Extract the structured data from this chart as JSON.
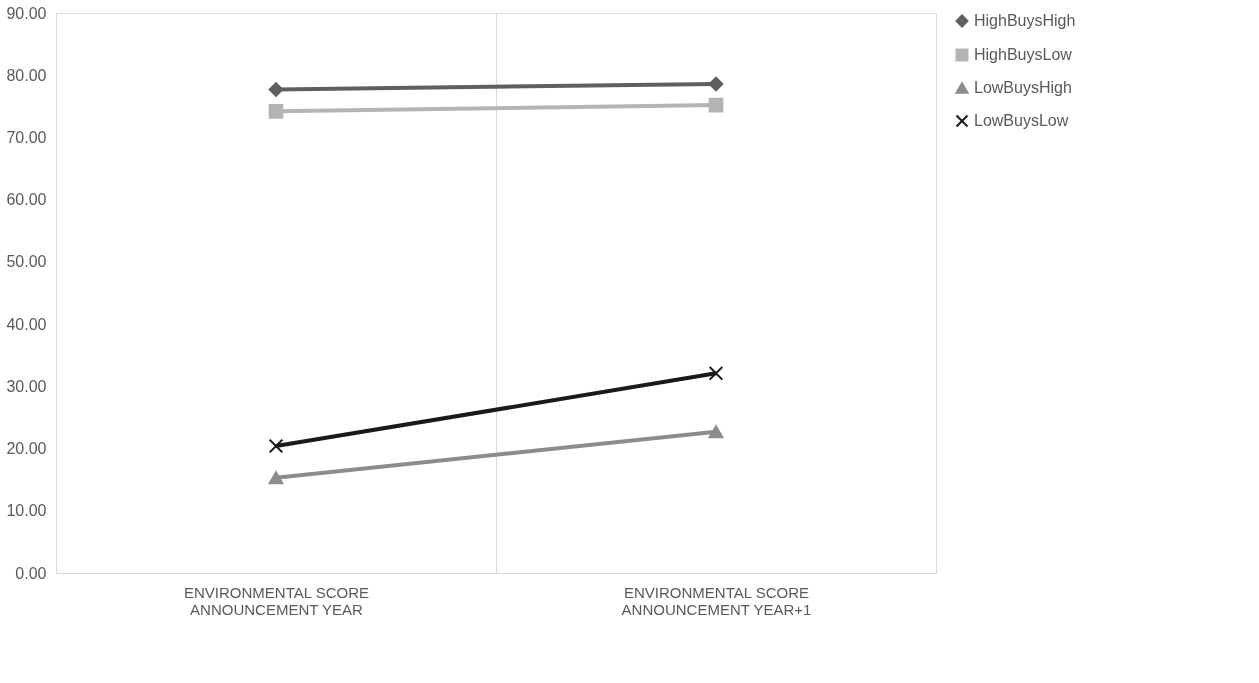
{
  "chart_data": {
    "type": "line",
    "categories": [
      "ENVIRONMENTAL SCORE ANNOUNCEMENT YEAR",
      "ENVIRONMENTAL SCORE ANNOUNCEMENT YEAR+1"
    ],
    "series": [
      {
        "name": "HighBuysHigh",
        "color": "#5f5f5f",
        "marker": "diamond",
        "values": [
          77.7,
          78.6
        ]
      },
      {
        "name": "HighBuysLow",
        "color": "#b4b4b4",
        "marker": "square",
        "values": [
          74.2,
          75.2
        ]
      },
      {
        "name": "LowBuysHigh",
        "color": "#8c8c8c",
        "marker": "triangle",
        "values": [
          15.3,
          22.7
        ]
      },
      {
        "name": "LowBuysLow",
        "color": "#1a1a1a",
        "marker": "cross",
        "values": [
          20.4,
          32.1
        ]
      }
    ],
    "ylim": [
      0,
      90
    ],
    "yticks": [
      {
        "value": 0,
        "label": "0.00"
      },
      {
        "value": 10,
        "label": "10.00"
      },
      {
        "value": 20,
        "label": "20.00"
      },
      {
        "value": 30,
        "label": "30.00"
      },
      {
        "value": 40,
        "label": "40.00"
      },
      {
        "value": 50,
        "label": "50.00"
      },
      {
        "value": 60,
        "label": "60.00"
      },
      {
        "value": 70,
        "label": "70.00"
      },
      {
        "value": 80,
        "label": "80.00"
      },
      {
        "value": 90,
        "label": "90.00"
      }
    ],
    "grid": "x",
    "legend": "right",
    "line_style": "solid"
  }
}
